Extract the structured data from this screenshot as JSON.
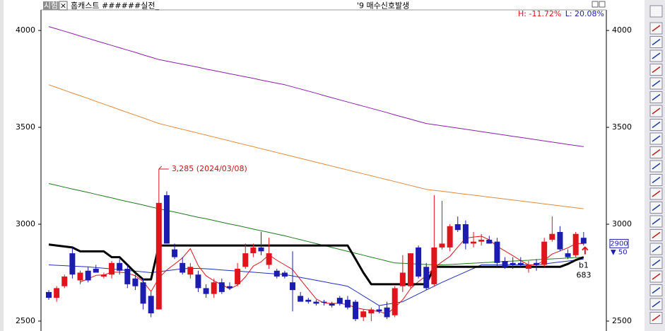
{
  "chart_data": {
    "type": "candlestick",
    "panel_tag": "시험",
    "close_button": "×",
    "title": "홈캐스트 ######실전_",
    "signal": "'9 매수신호발생",
    "high_label": "H: -11.72%",
    "low_label": "L: 20.08%",
    "annotation": "3,285 (2024/03/08)",
    "price_tag": 2900,
    "change_label": "▼ 50",
    "signal_label": "b1",
    "signal_count": 683,
    "ylim": [
      2478,
      4150
    ],
    "yticks": [
      2500,
      3000,
      3500,
      4000
    ],
    "up_color": "#e0141c",
    "down_color": "#1c1cb0",
    "ohlc": {
      "open": [
        2650,
        2620,
        2680,
        2850,
        2710,
        2760,
        2770,
        2730,
        2740,
        2800,
        2770,
        2720,
        2700,
        2630,
        2560,
        3150,
        2870,
        2800,
        2740,
        2740,
        2670,
        2640,
        2700,
        2680,
        2690,
        2780,
        2850,
        2880,
        2790,
        2760,
        2750,
        2700,
        2630,
        2610,
        2600,
        2600,
        2590,
        2620,
        2610,
        2600,
        2520,
        2540,
        2560,
        2570,
        2530,
        2680,
        2680,
        2880,
        2780,
        2690,
        2880,
        2880,
        3000,
        3000,
        2900,
        2910,
        2920,
        2910,
        2810,
        2800,
        2800,
        2770,
        2800,
        2790,
        2920,
        2960,
        2850,
        2840,
        2930
      ],
      "high": [
        2660,
        2680,
        2740,
        2880,
        2760,
        2780,
        2790,
        2750,
        2810,
        2820,
        2790,
        2740,
        2720,
        2650,
        3285,
        3170,
        2900,
        2830,
        2800,
        2760,
        2690,
        2720,
        2720,
        2700,
        2800,
        2900,
        2900,
        2960,
        2930,
        2770,
        2760,
        2860,
        2650,
        2620,
        2610,
        2610,
        2600,
        2630,
        2630,
        2610,
        2560,
        2570,
        2580,
        2600,
        2680,
        2840,
        2850,
        2890,
        2800,
        3150,
        3120,
        3000,
        3040,
        3020,
        2960,
        2950,
        2940,
        2930,
        2830,
        2830,
        2830,
        2810,
        2820,
        2930,
        3040,
        2990,
        2870,
        2960,
        2960
      ],
      "low": [
        2610,
        2600,
        2670,
        2720,
        2690,
        2700,
        2750,
        2720,
        2720,
        2740,
        2670,
        2660,
        2560,
        2520,
        2560,
        2900,
        2820,
        2740,
        2720,
        2650,
        2620,
        2620,
        2640,
        2660,
        2680,
        2770,
        2830,
        2840,
        2770,
        2720,
        2720,
        2550,
        2600,
        2590,
        2580,
        2580,
        2570,
        2580,
        2560,
        2500,
        2500,
        2500,
        2540,
        2510,
        2520,
        2650,
        2670,
        2720,
        2660,
        2680,
        2870,
        2860,
        2960,
        2870,
        2880,
        2890,
        2900,
        2780,
        2770,
        2770,
        2780,
        2750,
        2760,
        2780,
        2910,
        2860,
        2820,
        2830,
        2890
      ],
      "close": [
        2620,
        2670,
        2730,
        2740,
        2750,
        2710,
        2750,
        2740,
        2800,
        2760,
        2690,
        2680,
        2590,
        2540,
        3110,
        2900,
        2830,
        2750,
        2780,
        2670,
        2640,
        2700,
        2650,
        2670,
        2770,
        2850,
        2880,
        2860,
        2850,
        2730,
        2730,
        2660,
        2600,
        2600,
        2590,
        2595,
        2580,
        2590,
        2570,
        2510,
        2550,
        2560,
        2550,
        2520,
        2670,
        2750,
        2850,
        2730,
        2670,
        2880,
        2900,
        2990,
        2970,
        2900,
        2910,
        2920,
        2900,
        2800,
        2780,
        2790,
        2790,
        2790,
        2790,
        2910,
        2950,
        2870,
        2830,
        2950,
        2900
      ]
    },
    "lines": [
      {
        "color": "#8a1fa8",
        "width": 1,
        "values": [
          4020,
          4008,
          3996,
          3984,
          3971,
          3959,
          3947,
          3935,
          3923,
          3911,
          3899,
          3887,
          3874,
          3862,
          3850,
          3842,
          3834,
          3826,
          3818,
          3810,
          3801,
          3793,
          3785,
          3777,
          3769,
          3761,
          3753,
          3744,
          3736,
          3728,
          3720,
          3709,
          3698,
          3687,
          3676,
          3664,
          3653,
          3642,
          3631,
          3620,
          3609,
          3598,
          3587,
          3576,
          3564,
          3553,
          3542,
          3531,
          3520,
          3514,
          3508,
          3502,
          3496,
          3490,
          3484,
          3478,
          3472,
          3466,
          3460,
          3454,
          3448,
          3442,
          3436,
          3430,
          3424,
          3418,
          3412,
          3406,
          3400
        ]
      },
      {
        "color": "#e08a3a",
        "width": 1,
        "values": [
          3720,
          3706,
          3691,
          3677,
          3663,
          3649,
          3634,
          3620,
          3606,
          3591,
          3577,
          3563,
          3549,
          3534,
          3520,
          3510,
          3500,
          3490,
          3480,
          3470,
          3460,
          3450,
          3440,
          3430,
          3420,
          3410,
          3400,
          3390,
          3380,
          3370,
          3360,
          3350,
          3340,
          3330,
          3320,
          3310,
          3300,
          3290,
          3280,
          3270,
          3260,
          3250,
          3240,
          3230,
          3220,
          3210,
          3200,
          3190,
          3180,
          3175,
          3170,
          3165,
          3160,
          3155,
          3150,
          3145,
          3140,
          3135,
          3130,
          3125,
          3120,
          3115,
          3110,
          3105,
          3100,
          3095,
          3090,
          3085,
          3080
        ]
      },
      {
        "color": "#1f7a1f",
        "width": 1,
        "values": [
          3210,
          3201,
          3191,
          3182,
          3173,
          3164,
          3154,
          3145,
          3136,
          3126,
          3117,
          3108,
          3099,
          3089,
          3080,
          3071,
          3063,
          3054,
          3045,
          3036,
          3028,
          3019,
          3010,
          3001,
          2993,
          2984,
          2975,
          2966,
          2958,
          2949,
          2940,
          2930,
          2920,
          2910,
          2900,
          2890,
          2880,
          2870,
          2860,
          2850,
          2840,
          2830,
          2820,
          2810,
          2800,
          2798,
          2796,
          2794,
          2792,
          2791,
          2790,
          2792,
          2794,
          2797,
          2799,
          2801,
          2803,
          2806,
          2808,
          2810,
          2812,
          2814,
          2817,
          2819,
          2821,
          2823,
          2826,
          2828,
          2830
        ]
      },
      {
        "color": "#2030c0",
        "width": 1,
        "values": [
          2790,
          2788,
          2786,
          2784,
          2782,
          2780,
          2776,
          2773,
          2769,
          2765,
          2761,
          2758,
          2754,
          2750,
          2755,
          2760,
          2765,
          2770,
          2772,
          2772,
          2770,
          2767,
          2764,
          2761,
          2758,
          2755,
          2752,
          2749,
          2746,
          2743,
          2740,
          2733,
          2725,
          2718,
          2710,
          2703,
          2695,
          2688,
          2680,
          2655,
          2630,
          2605,
          2580,
          2587,
          2593,
          2600,
          2620,
          2640,
          2660,
          2680,
          2700,
          2718,
          2736,
          2754,
          2772,
          2790,
          2790,
          2790,
          2790,
          2790,
          2790,
          2790,
          2790,
          2795,
          2800,
          2805,
          2810,
          2815,
          2820
        ]
      },
      {
        "color": "#e0141c",
        "width": 1,
        "values": [
          null,
          null,
          null,
          null,
          2702,
          2718,
          2736,
          2738,
          2752,
          2752,
          2748,
          2734,
          2704,
          2652,
          2722,
          2764,
          2794,
          2826,
          2874,
          2786,
          2734,
          2708,
          2688,
          2666,
          2686,
          2728,
          2784,
          2806,
          2842,
          2814,
          2790,
          2766,
          2714,
          2664,
          2614,
          2593,
          2591,
          2591,
          2585,
          2569,
          2561,
          2556,
          2548,
          2538,
          2570,
          2610,
          2668,
          2704,
          2734,
          2776,
          2806,
          2834,
          2882,
          2928,
          2934,
          2938,
          2920,
          2886,
          2862,
          2838,
          2812,
          2790,
          2790,
          2814,
          2846,
          2862,
          2878,
          2900,
          2900
        ]
      },
      {
        "color": "#000000",
        "width": 3,
        "values": [
          2895,
          2890,
          2885,
          2880,
          2860,
          2860,
          2860,
          2860,
          2830,
          2830,
          2790,
          2750,
          2715,
          2715,
          2890,
          2890,
          2890,
          2890,
          2890,
          2890,
          2890,
          2890,
          2890,
          2890,
          2890,
          2890,
          2890,
          2890,
          2890,
          2890,
          2890,
          2890,
          2890,
          2890,
          2890,
          2890,
          2890,
          2890,
          2890,
          2820,
          2750,
          2690,
          2690,
          2690,
          2690,
          2690,
          2690,
          2690,
          2690,
          2780,
          2780,
          2780,
          2780,
          2780,
          2780,
          2780,
          2780,
          2780,
          2780,
          2780,
          2780,
          2780,
          2780,
          2780,
          2780,
          2780,
          2795,
          2815,
          2830
        ]
      }
    ]
  }
}
